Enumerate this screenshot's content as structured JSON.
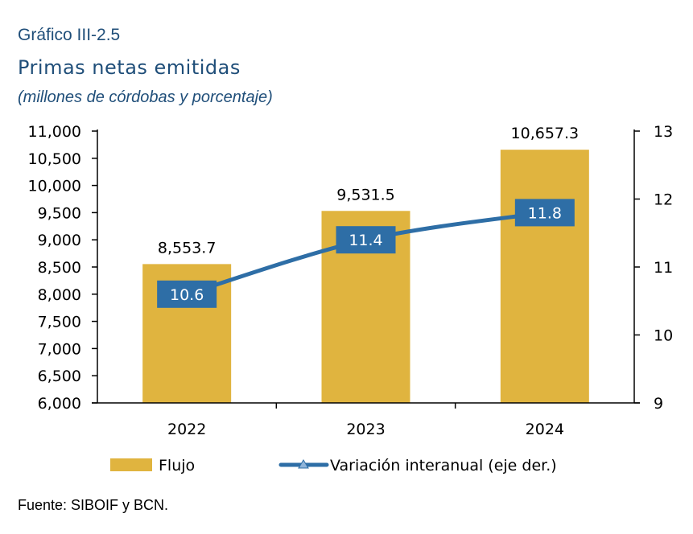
{
  "header": {
    "label": "Gráfico III-2.5",
    "title": "Primas netas emitidas",
    "subtitle": "(millones de córdobas y porcentaje)"
  },
  "source": "Fuente: SIBOIF y BCN.",
  "colors": {
    "bar": "#e0b43f",
    "line": "#2e6ea6",
    "line_label_bg": "#2e6ea6",
    "text": "#1f4e79"
  },
  "chart_data": {
    "type": "bar",
    "categories": [
      "2022",
      "2023",
      "2024"
    ],
    "series": [
      {
        "name": "Flujo",
        "type": "bar",
        "axis": "left",
        "values": [
          8553.7,
          9531.5,
          10657.3
        ],
        "labels": [
          "8,553.7",
          "9,531.5",
          "10,657.3"
        ]
      },
      {
        "name": "Variación interanual (eje der.)",
        "type": "line",
        "axis": "right",
        "values": [
          10.6,
          11.4,
          11.8
        ],
        "labels": [
          "10.6",
          "11.4",
          "11.8"
        ]
      }
    ],
    "y_left": {
      "min": 6000,
      "max": 11000,
      "ticks": [
        "6,000",
        "6,500",
        "7,000",
        "7,500",
        "8,000",
        "8,500",
        "9,000",
        "9,500",
        "10,000",
        "10,500",
        "11,000"
      ]
    },
    "y_right": {
      "min": 9,
      "max": 13,
      "ticks": [
        "9",
        "10",
        "11",
        "12",
        "13"
      ]
    },
    "legend_position": "bottom",
    "grid": false
  }
}
